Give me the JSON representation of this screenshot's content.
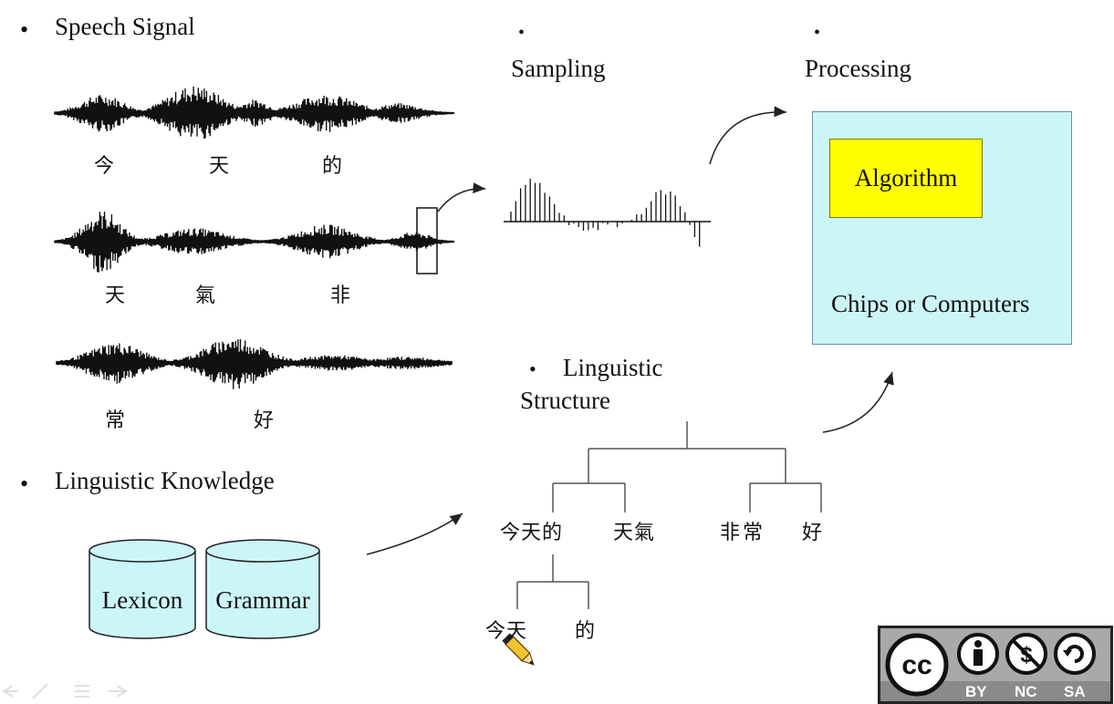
{
  "sections": {
    "speech_signal": "Speech Signal",
    "sampling": "Sampling",
    "processing": "Processing",
    "linguistic_knowledge": "Linguistic  Knowledge",
    "linguistic_structure_line1": "Linguistic",
    "linguistic_structure_line2": "Structure"
  },
  "waveforms": [
    {
      "chars": [
        "今",
        "天",
        "的"
      ]
    },
    {
      "chars": [
        "天",
        "氣",
        "非"
      ]
    },
    {
      "chars": [
        "常",
        "好"
      ]
    }
  ],
  "processing_box": {
    "algorithm": "Algorithm",
    "chips": "Chips or Computers",
    "fill": "#ccf5f8",
    "algorithm_fill": "#ffff00"
  },
  "databases": [
    "Lexicon",
    "Grammar"
  ],
  "tree": {
    "level1": [
      "今天的",
      "天氣",
      "非常",
      "好"
    ],
    "level2": [
      "今天",
      "的"
    ]
  },
  "license": {
    "cc": "cc",
    "labels": [
      "BY",
      "NC",
      "SA"
    ]
  },
  "icons": [
    "pencil-icon",
    "back-icon",
    "pen-icon",
    "menu-icon",
    "forward-icon"
  ]
}
